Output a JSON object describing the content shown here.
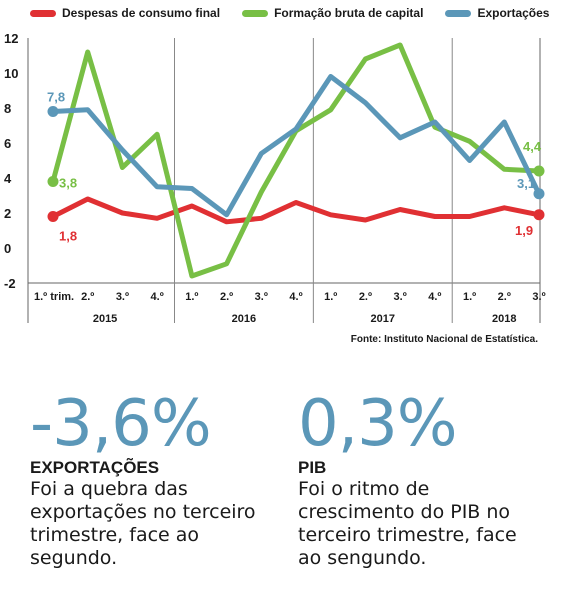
{
  "chart_data": {
    "type": "line",
    "title": "",
    "xlabel": "",
    "ylabel": "",
    "ylim": [
      -2,
      12
    ],
    "yticks": [
      "12",
      "10",
      "8",
      "6",
      "4",
      "2",
      "0",
      "-2"
    ],
    "ytick_values": [
      12,
      10,
      8,
      6,
      4,
      2,
      0,
      -2
    ],
    "grid": "vertical year separators",
    "legend_position": "top",
    "quarter_labels": [
      "1.º trim.",
      "2.º",
      "3.º",
      "4.º",
      "1.º",
      "2.º",
      "3.º",
      "4.º",
      "1.º",
      "2.º",
      "3.º",
      "4.º",
      "1.º",
      "2.º",
      "3.º"
    ],
    "years": [
      "2015",
      "2016",
      "2017",
      "2018"
    ],
    "series": [
      {
        "name": "Despesas de consumo final",
        "color": "#e03033",
        "values": [
          1.8,
          2.8,
          2.0,
          1.7,
          2.4,
          1.5,
          1.7,
          2.6,
          1.9,
          1.6,
          2.2,
          1.8,
          1.8,
          2.3,
          1.9
        ],
        "labels": {
          "first": "1,8",
          "last": "1,9"
        }
      },
      {
        "name": "Formação bruta de capital",
        "color": "#78bf45",
        "values": [
          3.8,
          11.2,
          4.6,
          6.5,
          -1.6,
          -0.9,
          3.2,
          6.7,
          7.9,
          10.8,
          11.6,
          6.9,
          6.1,
          4.5,
          4.4
        ],
        "labels": {
          "first": "3,8",
          "last": "4,4"
        }
      },
      {
        "name": "Exportações",
        "color": "#5b97b8",
        "values": [
          7.8,
          7.9,
          5.6,
          3.5,
          3.4,
          1.9,
          5.4,
          6.8,
          9.8,
          8.3,
          6.3,
          7.2,
          5.0,
          7.2,
          3.1
        ],
        "labels": {
          "first": "7,8",
          "last": "3,1"
        }
      }
    ]
  },
  "source": "Fonte: Instituto Nacional de Estatística.",
  "stats": [
    {
      "value": "-3,6%",
      "title": "EXPORTAÇÕES",
      "text": "Foi a quebra das exportações no terceiro trimestre, face ao segundo."
    },
    {
      "value": "0,3%",
      "title": "PIB",
      "text": "Foi o ritmo de crescimento do PIB no terceiro trimestre, face ao sengundo."
    }
  ]
}
